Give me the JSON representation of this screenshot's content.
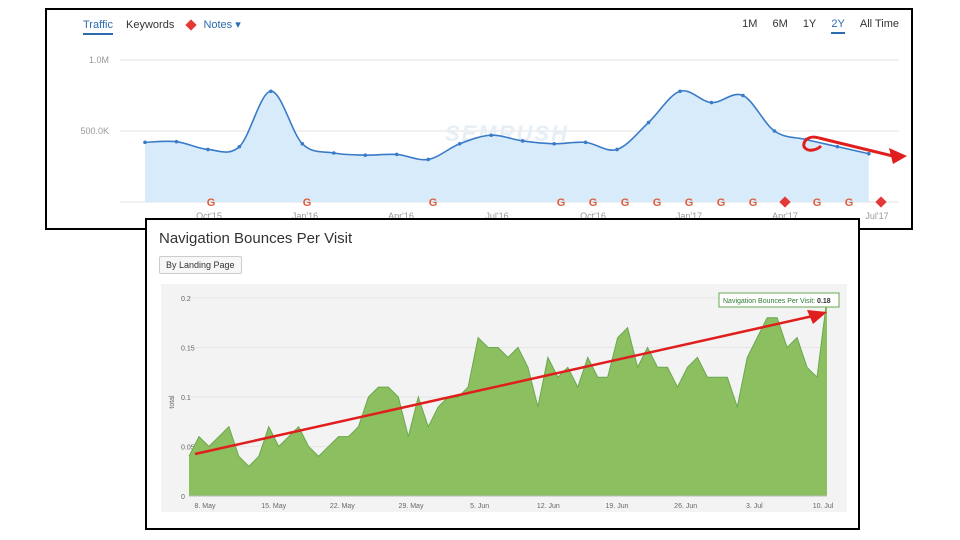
{
  "top": {
    "tabs": [
      "Traffic",
      "Keywords",
      "Notes"
    ],
    "ranges": [
      "1M",
      "6M",
      "1Y",
      "2Y",
      "All Time"
    ],
    "active_tab": "Traffic",
    "active_range": "2Y",
    "watermark": "SEMRUSH"
  },
  "bottom": {
    "title": "Navigation Bounces Per Visit",
    "button": "By Landing Page",
    "tooltip_label": "Navigation Bounces Per Visit",
    "tooltip_value": "0.18"
  },
  "chart_data": [
    {
      "type": "area",
      "title": "Traffic",
      "yticks": [
        "1.0M",
        "500.0K"
      ],
      "ylim": [
        0,
        1000000
      ],
      "x_tick_labels": [
        "Oct'15",
        "Jan'16",
        "Apr'16",
        "Jul'16",
        "Oct'16",
        "Jan'17",
        "Apr'17",
        "Jul'17"
      ],
      "values": [
        420000,
        425000,
        370000,
        390000,
        780000,
        410000,
        345000,
        330000,
        335000,
        300000,
        410000,
        470000,
        430000,
        410000,
        420000,
        370000,
        560000,
        780000,
        700000,
        750000,
        500000,
        440000,
        390000,
        340000
      ],
      "note_markers": [
        "G",
        "G",
        "G",
        "G",
        "G",
        "G",
        "G",
        "G",
        "G",
        "G",
        "◆",
        "G",
        "G",
        "◆"
      ],
      "color": "#3a7bc8",
      "fill": "#d7ebfb"
    },
    {
      "type": "area",
      "title": "Navigation Bounces Per Visit",
      "ylabel": "total",
      "yticks": [
        "0.2",
        "0.15",
        "0.1",
        "0.05",
        "0"
      ],
      "ylim": [
        0,
        0.2
      ],
      "x_tick_labels": [
        "8. May",
        "15. May",
        "22. May",
        "29. May",
        "5. Jun",
        "12. Jun",
        "19. Jun",
        "26. Jun",
        "3. Jul",
        "10. Jul"
      ],
      "values": [
        0.04,
        0.06,
        0.05,
        0.06,
        0.07,
        0.04,
        0.03,
        0.04,
        0.07,
        0.05,
        0.06,
        0.07,
        0.05,
        0.04,
        0.05,
        0.06,
        0.06,
        0.07,
        0.1,
        0.11,
        0.11,
        0.1,
        0.06,
        0.1,
        0.07,
        0.09,
        0.1,
        0.1,
        0.11,
        0.16,
        0.15,
        0.15,
        0.14,
        0.15,
        0.13,
        0.09,
        0.14,
        0.12,
        0.13,
        0.11,
        0.14,
        0.12,
        0.12,
        0.16,
        0.17,
        0.13,
        0.15,
        0.13,
        0.13,
        0.11,
        0.13,
        0.14,
        0.12,
        0.12,
        0.12,
        0.09,
        0.14,
        0.16,
        0.18,
        0.18,
        0.15,
        0.16,
        0.13,
        0.12,
        0.2
      ],
      "color": "#6aa84f",
      "fill": "#8cbf5f"
    }
  ]
}
